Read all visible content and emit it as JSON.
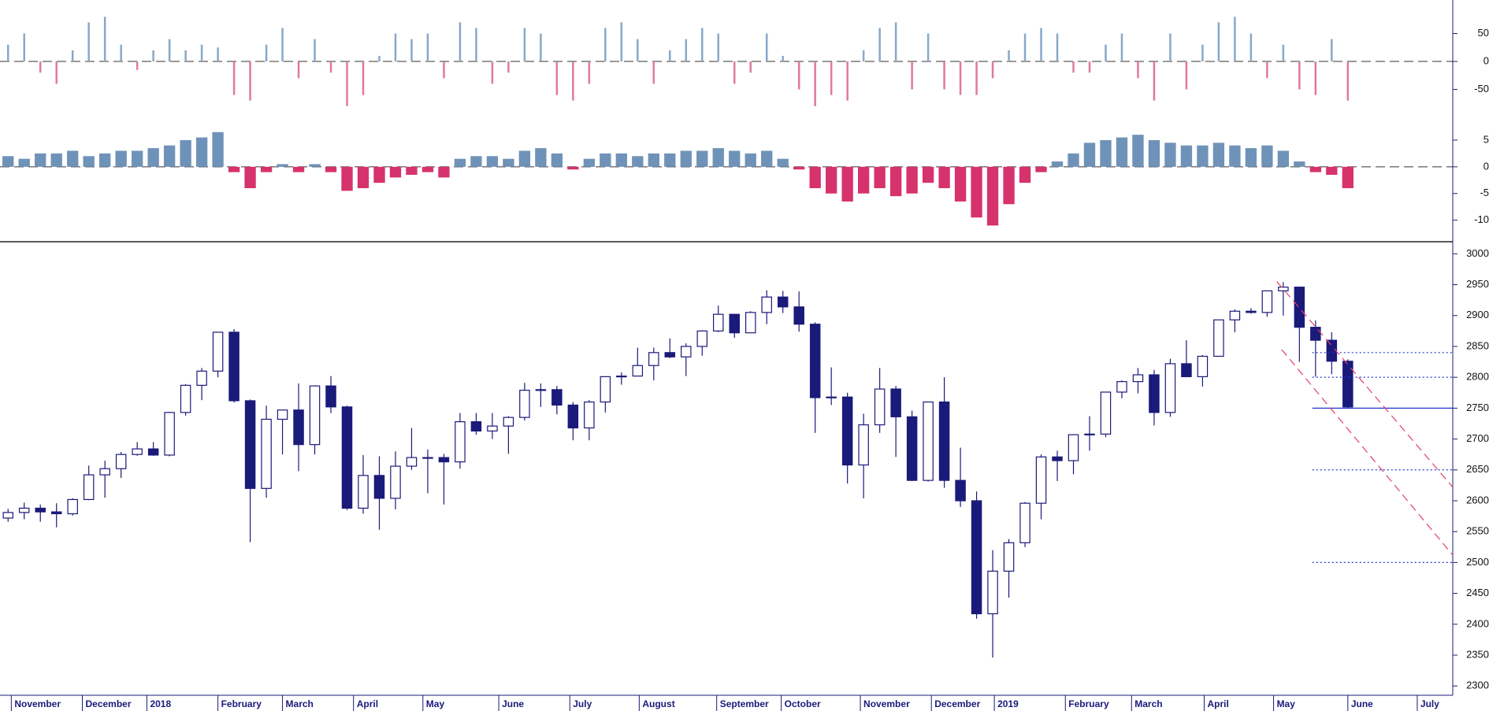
{
  "chart_data": [
    {
      "type": "bar",
      "x": [
        0.5,
        1.5,
        2.5,
        3.5,
        4.5,
        5.5,
        6.5,
        7.5,
        8.5,
        9.5,
        10.5,
        11.5,
        12.5,
        13.5,
        14.5,
        15.5,
        16.5,
        17.5,
        18.5,
        19.5,
        20.5,
        21.5,
        22.5,
        23.5,
        24.5,
        25.5,
        26.5,
        27.5,
        28.5,
        29.5,
        30.5,
        31.5,
        32.5,
        33.5,
        34.5,
        35.5,
        36.5,
        37.5,
        38.5,
        39.5,
        40.5,
        41.5,
        42.5,
        43.5,
        44.5,
        45.5,
        46.5,
        47.5,
        48.5,
        49.5,
        50.5,
        51.5,
        52.5,
        53.5,
        54.5,
        55.5,
        56.5,
        57.5,
        58.5,
        59.5,
        60.5,
        61.5,
        62.5,
        63.5,
        64.5,
        65.5,
        66.5,
        67.5,
        68.5,
        69.5,
        70.5,
        71.5,
        72.5,
        73.5,
        74.5,
        75.5,
        76.5,
        77.5,
        78.5,
        79.5,
        80.5,
        81.5,
        82.5,
        83.5
      ],
      "values": [
        30,
        50,
        -20,
        -40,
        20,
        70,
        80,
        30,
        -15,
        20,
        40,
        20,
        30,
        25,
        -60,
        -70,
        30,
        60,
        -30,
        40,
        -20,
        -80,
        -60,
        10,
        50,
        40,
        50,
        -30,
        70,
        60,
        -40,
        -20,
        60,
        50,
        -60,
        -70,
        -40,
        60,
        70,
        40,
        -40,
        20,
        40,
        60,
        50,
        -40,
        -20,
        50,
        10,
        -50,
        -80,
        -60,
        -70,
        20,
        60,
        70,
        -50,
        50,
        -50,
        -60,
        -60,
        -30,
        20,
        50,
        60,
        50,
        -20,
        -20,
        30,
        50,
        -30,
        -70,
        50,
        -50,
        30,
        70,
        80,
        50,
        -30,
        30,
        -50,
        -60,
        40,
        -70
      ],
      "colors": {
        "positive": "#88a8c8",
        "negative": "#e07a98"
      },
      "ylim": [
        -100,
        110
      ],
      "yticks": [
        50,
        0,
        -50
      ]
    },
    {
      "type": "bar",
      "x": [
        0.5,
        1.5,
        2.5,
        3.5,
        4.5,
        5.5,
        6.5,
        7.5,
        8.5,
        9.5,
        10.5,
        11.5,
        12.5,
        13.5,
        14.5,
        15.5,
        16.5,
        17.5,
        18.5,
        19.5,
        20.5,
        21.5,
        22.5,
        23.5,
        24.5,
        25.5,
        26.5,
        27.5,
        28.5,
        29.5,
        30.5,
        31.5,
        32.5,
        33.5,
        34.5,
        35.5,
        36.5,
        37.5,
        38.5,
        39.5,
        40.5,
        41.5,
        42.5,
        43.5,
        44.5,
        45.5,
        46.5,
        47.5,
        48.5,
        49.5,
        50.5,
        51.5,
        52.5,
        53.5,
        54.5,
        55.5,
        56.5,
        57.5,
        58.5,
        59.5,
        60.5,
        61.5,
        62.5,
        63.5,
        64.5,
        65.5,
        66.5,
        67.5,
        68.5,
        69.5,
        70.5,
        71.5,
        72.5,
        73.5,
        74.5,
        75.5,
        76.5,
        77.5,
        78.5,
        79.5,
        80.5,
        81.5,
        82.5,
        83.5
      ],
      "values": [
        2,
        1.5,
        2.5,
        2.5,
        3,
        2,
        2.5,
        3,
        3,
        3.5,
        4,
        5,
        5.5,
        6.5,
        -1,
        -4,
        -1,
        0.5,
        -1,
        0.5,
        -1,
        -4.5,
        -4,
        -3,
        -2,
        -1.5,
        -1,
        -2,
        1.5,
        2,
        2,
        1.5,
        3,
        3.5,
        2.5,
        -0.5,
        1.5,
        2.5,
        2.5,
        2,
        2.5,
        2.5,
        3,
        3,
        3.5,
        3,
        2.5,
        3,
        1.5,
        -0.5,
        -4,
        -5,
        -6.5,
        -5,
        -4,
        -5.5,
        -5,
        -3,
        -4,
        -6.5,
        -9.5,
        -11,
        -7,
        -3,
        -1,
        1,
        2.5,
        4.5,
        5,
        5.5,
        6,
        5,
        4.5,
        4,
        4,
        4.5,
        4,
        3.5,
        4,
        3,
        1,
        -1,
        -1.5,
        -4
      ],
      "colors": {
        "positive": "#6f93b8",
        "negative": "#d6336d"
      },
      "ylim": [
        -13,
        7.5
      ],
      "yticks": [
        5,
        0,
        -5,
        -10
      ]
    },
    {
      "type": "candlestick",
      "x": [
        0.5,
        1.5,
        2.5,
        3.5,
        4.5,
        5.5,
        6.5,
        7.5,
        8.5,
        9.5,
        10.5,
        11.5,
        12.5,
        13.5,
        14.5,
        15.5,
        16.5,
        17.5,
        18.5,
        19.5,
        20.5,
        21.5,
        22.5,
        23.5,
        24.5,
        25.5,
        26.5,
        27.5,
        28.5,
        29.5,
        30.5,
        31.5,
        32.5,
        33.5,
        34.5,
        35.5,
        36.5,
        37.5,
        38.5,
        39.5,
        40.5,
        41.5,
        42.5,
        43.5,
        44.5,
        45.5,
        46.5,
        47.5,
        48.5,
        49.5,
        50.5,
        51.5,
        52.5,
        53.5,
        54.5,
        55.5,
        56.5,
        57.5,
        58.5,
        59.5,
        60.5,
        61.5,
        62.5,
        63.5,
        64.5,
        65.5,
        66.5,
        67.5,
        68.5,
        69.5,
        70.5,
        71.5,
        72.5,
        73.5,
        74.5,
        75.5,
        76.5,
        77.5,
        78.5,
        79.5,
        80.5,
        81.5,
        82.5,
        83.5
      ],
      "open": [
        2572,
        2581,
        2588,
        2582,
        2579,
        2602,
        2642,
        2652,
        2675,
        2684,
        2674,
        2743,
        2787,
        2810,
        2873,
        2762,
        2620,
        2732,
        2747,
        2691,
        2786,
        2752,
        2588,
        2641,
        2604,
        2656,
        2670,
        2670,
        2663,
        2728,
        2713,
        2721,
        2735,
        2779,
        2780,
        2755,
        2718,
        2760,
        2801,
        2802,
        2819,
        2840,
        2833,
        2850,
        2875,
        2902,
        2872,
        2905,
        2930,
        2914,
        2886,
        2767,
        2768,
        2658,
        2723,
        2781,
        2736,
        2633,
        2760,
        2633,
        2600,
        2417,
        2486,
        2532,
        2596,
        2671,
        2665,
        2707,
        2708,
        2776,
        2793,
        2804,
        2743,
        2822,
        2801,
        2834,
        2893,
        2907,
        2905,
        2940,
        2946,
        2881,
        2860,
        2826
      ],
      "high": [
        2587,
        2597,
        2594,
        2596,
        2604,
        2657,
        2665,
        2679,
        2695,
        2695,
        2744,
        2789,
        2815,
        2873,
        2878,
        2764,
        2754,
        2747,
        2790,
        2787,
        2802,
        2754,
        2674,
        2672,
        2680,
        2718,
        2683,
        2676,
        2742,
        2742,
        2742,
        2737,
        2791,
        2790,
        2786,
        2760,
        2763,
        2801,
        2808,
        2848,
        2848,
        2863,
        2855,
        2876,
        2916,
        2902,
        2907,
        2941,
        2940,
        2939,
        2889,
        2816,
        2775,
        2741,
        2815,
        2786,
        2746,
        2760,
        2800,
        2686,
        2615,
        2520,
        2538,
        2598,
        2675,
        2681,
        2708,
        2737,
        2776,
        2795,
        2815,
        2812,
        2830,
        2860,
        2836,
        2893,
        2910,
        2912,
        2940,
        2954,
        2947,
        2892,
        2873,
        2829
      ],
      "low": [
        2566,
        2570,
        2566,
        2557,
        2576,
        2601,
        2605,
        2637,
        2673,
        2673,
        2672,
        2738,
        2763,
        2800,
        2759,
        2533,
        2605,
        2675,
        2648,
        2675,
        2742,
        2585,
        2579,
        2553,
        2586,
        2650,
        2612,
        2594,
        2652,
        2707,
        2700,
        2676,
        2730,
        2752,
        2740,
        2698,
        2698,
        2743,
        2788,
        2802,
        2795,
        2831,
        2802,
        2835,
        2873,
        2864,
        2872,
        2886,
        2904,
        2874,
        2710,
        2755,
        2628,
        2604,
        2710,
        2671,
        2632,
        2631,
        2621,
        2590,
        2409,
        2346,
        2443,
        2525,
        2570,
        2632,
        2643,
        2681,
        2703,
        2766,
        2774,
        2722,
        2736,
        2800,
        2785,
        2834,
        2873,
        2903,
        2898,
        2900,
        2825,
        2801,
        2805,
        2750
      ],
      "close": [
        2581,
        2588,
        2582,
        2579,
        2602,
        2642,
        2652,
        2675,
        2684,
        2674,
        2743,
        2787,
        2810,
        2873,
        2762,
        2620,
        2732,
        2747,
        2691,
        2786,
        2752,
        2588,
        2641,
        2604,
        2656,
        2670,
        2670,
        2663,
        2728,
        2713,
        2721,
        2735,
        2779,
        2780,
        2755,
        2718,
        2760,
        2801,
        2802,
        2819,
        2840,
        2833,
        2850,
        2875,
        2902,
        2872,
        2905,
        2930,
        2914,
        2886,
        2767,
        2768,
        2658,
        2723,
        2781,
        2736,
        2633,
        2760,
        2633,
        2600,
        2417,
        2486,
        2532,
        2596,
        2671,
        2665,
        2707,
        2708,
        2776,
        2793,
        2804,
        2743,
        2822,
        2801,
        2834,
        2893,
        2907,
        2905,
        2940,
        2946,
        2881,
        2860,
        2826,
        2752
      ],
      "color": "#1a1a7a",
      "xlim": [
        0,
        90
      ],
      "xticks": [
        {
          "value": 0.7,
          "label": "November"
        },
        {
          "value": 5.1,
          "label": "December"
        },
        {
          "value": 9.1,
          "label": "2018"
        },
        {
          "value": 13.5,
          "label": "February"
        },
        {
          "value": 17.5,
          "label": "March"
        },
        {
          "value": 21.9,
          "label": "April"
        },
        {
          "value": 26.2,
          "label": "May"
        },
        {
          "value": 30.9,
          "label": "June"
        },
        {
          "value": 35.3,
          "label": "July"
        },
        {
          "value": 39.6,
          "label": "August"
        },
        {
          "value": 44.4,
          "label": "September"
        },
        {
          "value": 48.4,
          "label": "October"
        },
        {
          "value": 53.3,
          "label": "November"
        },
        {
          "value": 57.7,
          "label": "December"
        },
        {
          "value": 61.6,
          "label": "2019"
        },
        {
          "value": 66,
          "label": "February"
        },
        {
          "value": 70.1,
          "label": "March"
        },
        {
          "value": 74.6,
          "label": "April"
        },
        {
          "value": 78.9,
          "label": "May"
        },
        {
          "value": 83.5,
          "label": "June"
        },
        {
          "value": 87.8,
          "label": "July"
        }
      ],
      "ylim": [
        2285,
        3017
      ],
      "yticks": [
        2300,
        2350,
        2400,
        2450,
        2500,
        2550,
        2600,
        2650,
        2700,
        2750,
        2800,
        2850,
        2900,
        2950,
        3000
      ],
      "hline_start": 81.3,
      "hlines": [
        {
          "value": 2840,
          "style": "dotted"
        },
        {
          "value": 2800,
          "style": "dotted"
        },
        {
          "value": 2750,
          "style": "solid"
        },
        {
          "value": 2650,
          "style": "dotted"
        },
        {
          "value": 2500,
          "style": "dotted"
        }
      ],
      "hline_color": "#2233cc",
      "trendlines": [
        {
          "x": [
            79.1,
            90
          ],
          "y": [
            2955,
            2622
          ]
        },
        {
          "x": [
            79.4,
            90
          ],
          "y": [
            2845,
            2512
          ]
        }
      ],
      "trendline_color": "#e0406a"
    }
  ]
}
